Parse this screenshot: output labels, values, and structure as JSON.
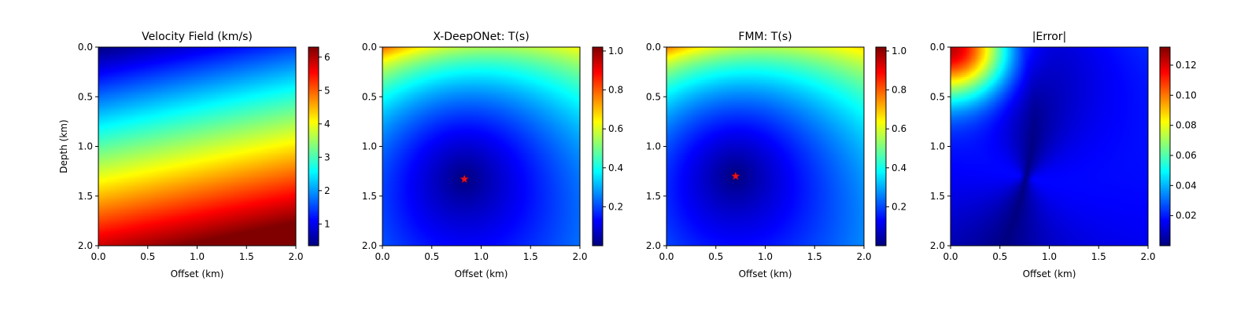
{
  "chart_data": [
    {
      "type": "heatmap",
      "title": "Velocity Field (km/s)",
      "xlabel": "Offset (km)",
      "ylabel": "Depth (km)",
      "xlim": [
        0.0,
        2.0
      ],
      "ylim": [
        2.0,
        0.0
      ],
      "xticks": [
        "0.0",
        "0.5",
        "1.0",
        "1.5",
        "2.0"
      ],
      "yticks": [
        "0.0",
        "0.5",
        "1.0",
        "1.5",
        "2.0"
      ],
      "colormap": "jet",
      "field": "velocity",
      "colorbar": {
        "range": [
          0.35,
          6.3
        ],
        "ticks": [
          1,
          2,
          3,
          4,
          5,
          6
        ],
        "tick_labels": [
          "1",
          "2",
          "3",
          "4",
          "5",
          "6"
        ]
      },
      "value_range": [
        0.35,
        6.3
      ]
    },
    {
      "type": "heatmap",
      "title": "X-DeepONet: T(s)",
      "xlabel": "Offset (km)",
      "ylabel": "",
      "xlim": [
        0.0,
        2.0
      ],
      "ylim": [
        2.0,
        0.0
      ],
      "xticks": [
        "0.0",
        "0.5",
        "1.0",
        "1.5",
        "2.0"
      ],
      "yticks": [
        "0.0",
        "0.5",
        "1.0",
        "1.5",
        "2.0"
      ],
      "colormap": "jet",
      "field": "traveltime",
      "source": {
        "x": 0.83,
        "y": 1.33,
        "marker": "red star"
      },
      "colorbar": {
        "range": [
          0.0,
          1.02
        ],
        "ticks": [
          0.2,
          0.4,
          0.6,
          0.8,
          1.0
        ],
        "tick_labels": [
          "0.2",
          "0.4",
          "0.6",
          "0.8",
          "1.0"
        ]
      }
    },
    {
      "type": "heatmap",
      "title": "FMM: T(s)",
      "xlabel": "Offset (km)",
      "ylabel": "",
      "xlim": [
        0.0,
        2.0
      ],
      "ylim": [
        2.0,
        0.0
      ],
      "xticks": [
        "0.0",
        "0.5",
        "1.0",
        "1.5",
        "2.0"
      ],
      "yticks": [
        "0.0",
        "0.5",
        "1.0",
        "1.5",
        "2.0"
      ],
      "colormap": "jet",
      "field": "traveltime",
      "source": {
        "x": 0.7,
        "y": 1.3,
        "marker": "red star"
      },
      "colorbar": {
        "range": [
          0.0,
          1.02
        ],
        "ticks": [
          0.2,
          0.4,
          0.6,
          0.8,
          1.0
        ],
        "tick_labels": [
          "0.2",
          "0.4",
          "0.6",
          "0.8",
          "1.0"
        ]
      }
    },
    {
      "type": "heatmap",
      "title": "|Error|",
      "xlabel": "Offset (km)",
      "ylabel": "",
      "xlim": [
        0.0,
        2.0
      ],
      "ylim": [
        2.0,
        0.0
      ],
      "xticks": [
        "0.0",
        "0.5",
        "1.0",
        "1.5",
        "2.0"
      ],
      "yticks": [
        "0.0",
        "0.5",
        "1.0",
        "1.5",
        "2.0"
      ],
      "colormap": "jet",
      "field": "abs_error",
      "colorbar": {
        "range": [
          0.0,
          0.132
        ],
        "ticks": [
          0.02,
          0.04,
          0.06,
          0.08,
          0.1,
          0.12
        ],
        "tick_labels": [
          "0.02",
          "0.04",
          "0.06",
          "0.08",
          "0.10",
          "0.12"
        ]
      }
    }
  ]
}
